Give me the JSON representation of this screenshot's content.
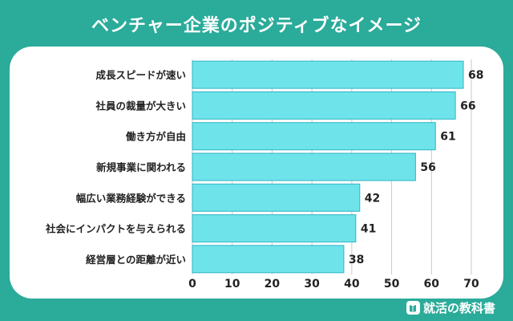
{
  "title": "ベンチャー企業のポジティブなイメージ",
  "footer": {
    "brand": "就活の教科書",
    "icon": "book-icon"
  },
  "colors": {
    "background": "#2bab9a",
    "bar": "#6ee3ea",
    "bar_border": "#2fb6c4",
    "grid": "#c9c9c9",
    "text": "#222222"
  },
  "chart_data": {
    "type": "bar",
    "orientation": "horizontal",
    "categories": [
      "成長スピードが速い",
      "社員の裁量が大きい",
      "働き方が自由",
      "新規事業に関われる",
      "幅広い業務経験ができる",
      "社会にインパクトを与えられる",
      "経営層との距離が近い"
    ],
    "values": [
      68,
      66,
      61,
      56,
      42,
      41,
      38
    ],
    "xlim": [
      0,
      70
    ],
    "xticks": [
      0,
      10,
      20,
      30,
      40,
      50,
      60,
      70
    ],
    "grid": true,
    "data_labels": true
  }
}
